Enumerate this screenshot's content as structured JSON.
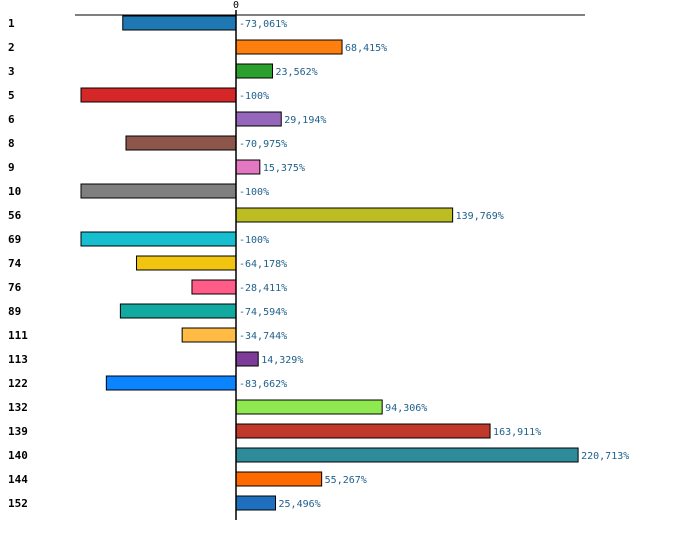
{
  "chart_data": {
    "type": "bar",
    "orientation": "horizontal",
    "title": "",
    "xlabel": "",
    "ylabel": "",
    "zero_tick_label": "0",
    "xlim": [
      -100,
      225
    ],
    "categories": [
      "1",
      "2",
      "3",
      "5",
      "6",
      "8",
      "9",
      "10",
      "56",
      "69",
      "74",
      "76",
      "89",
      "111",
      "113",
      "122",
      "132",
      "139",
      "140",
      "144",
      "152"
    ],
    "values": [
      -73.061,
      68.415,
      23.562,
      -100,
      29.194,
      -70.975,
      15.375,
      -100,
      139.769,
      -100,
      -64.178,
      -28.411,
      -74.594,
      -34.744,
      14.329,
      -83.662,
      94.306,
      163.911,
      220.713,
      55.267,
      25.496
    ],
    "value_labels": [
      "-73,061%",
      "68,415%",
      "23,562%",
      "-100%",
      "29,194%",
      "-70,975%",
      "15,375%",
      "-100%",
      "139,769%",
      "-100%",
      "-64,178%",
      "-28,411%",
      "-74,594%",
      "-34,744%",
      "14,329%",
      "-83,662%",
      "94,306%",
      "163,911%",
      "220,713%",
      "55,267%",
      "25,496%"
    ],
    "colors": [
      "#1f77b4",
      "#ff7f0e",
      "#2ca02c",
      "#d62728",
      "#9467bd",
      "#8c564b",
      "#e377c2",
      "#7f7f7f",
      "#bcbd22",
      "#17becf",
      "#f1c40f",
      "#ff5c8a",
      "#12aaa0",
      "#ffbb44",
      "#7d3c98",
      "#0a84ff",
      "#8fe84f",
      "#c0392b",
      "#2e8b9a",
      "#ff6a00",
      "#1f6fbf"
    ],
    "grid": false,
    "legend": "none"
  }
}
